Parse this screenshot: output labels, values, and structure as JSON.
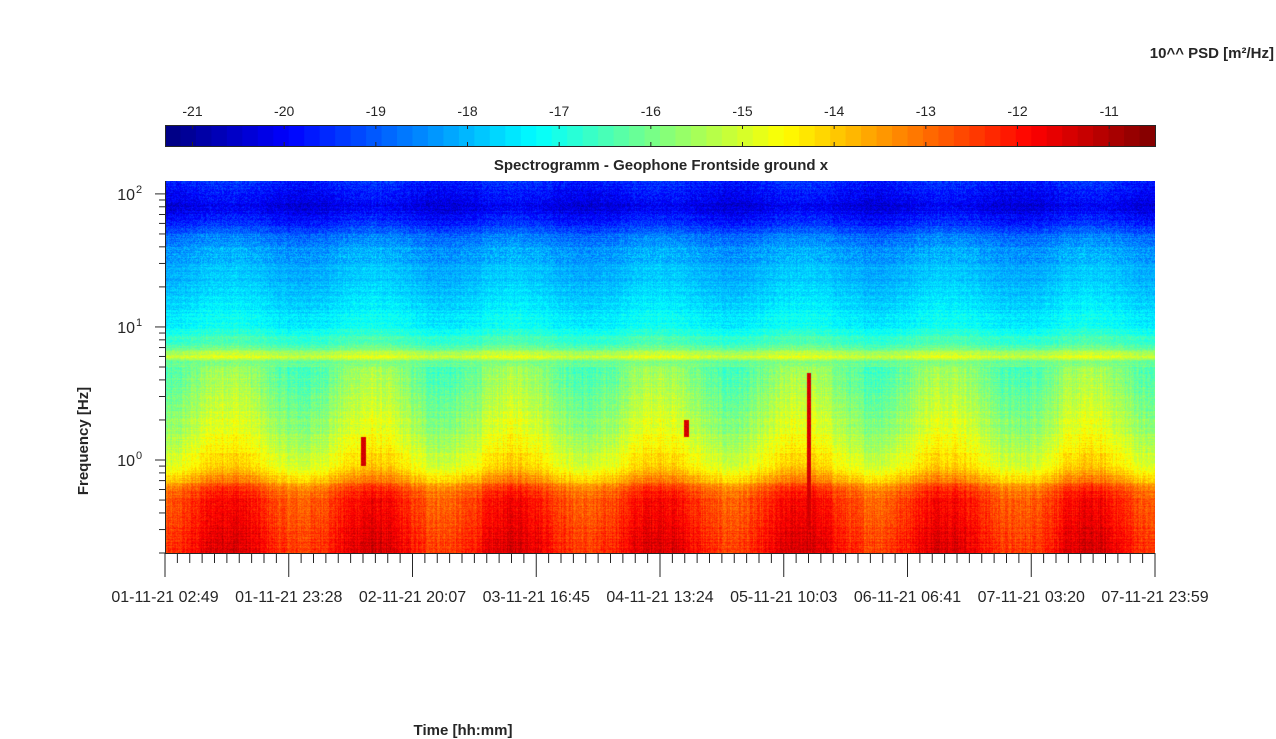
{
  "chart_data": {
    "type": "heatmap",
    "title": "Spectrogramm - Geophone Frontside ground x",
    "xlabel": "Time [hh:mm]",
    "ylabel": "Frequency [Hz]",
    "colorbar": {
      "label": "10^^ PSD [m²/Hz]",
      "colormap": "jet",
      "range": [
        -21.3,
        -10.5
      ],
      "ticks": [
        "-21",
        "-20",
        "-19",
        "-18",
        "-17",
        "-16",
        "-15",
        "-14",
        "-13",
        "-12",
        "-11"
      ],
      "tick_values": [
        -21,
        -20,
        -19,
        -18,
        -17,
        -16,
        -15,
        -14,
        -13,
        -12,
        -11
      ]
    },
    "x_axis": {
      "start": "01-11-21 02:49",
      "end": "07-11-21 23:59",
      "tick_labels": [
        "01-11-21  02:49",
        "01-11-21  23:28",
        "02-11-21  20:07",
        "03-11-21  16:45",
        "04-11-21  13:24",
        "05-11-21  10:03",
        "06-11-21  06:41",
        "07-11-21  03:20",
        "07-11-21  23:59"
      ]
    },
    "y_axis": {
      "scale": "log",
      "range": [
        0.2,
        125
      ],
      "tick_values": [
        1,
        10,
        100
      ],
      "tick_labels": [
        {
          "base": "10",
          "exp": "0"
        },
        {
          "base": "10",
          "exp": "1"
        },
        {
          "base": "10",
          "exp": "2"
        }
      ]
    },
    "psd_profile": {
      "description_units": "frequency [Hz] -> log10 PSD [m²/Hz]",
      "frequency": [
        0.2,
        0.3,
        0.45,
        0.6,
        0.7,
        0.85,
        1.0,
        1.5,
        2.5,
        4.0,
        5.5,
        6.0,
        7.0,
        10,
        15,
        22,
        30,
        40,
        50,
        60,
        80,
        100,
        125
      ],
      "log10_psd": [
        -11.9,
        -12.1,
        -12.3,
        -12.7,
        -13.6,
        -14.3,
        -14.6,
        -15.1,
        -15.6,
        -15.9,
        -16.0,
        -14.9,
        -16.2,
        -17.2,
        -17.6,
        -17.9,
        -18.1,
        -18.3,
        -18.8,
        -19.6,
        -20.2,
        -19.9,
        -19.5
      ]
    },
    "events": [
      {
        "time_fraction": 0.2,
        "f_low": 0.9,
        "f_high": 1.5
      },
      {
        "time_fraction": 0.526,
        "f_low": 1.5,
        "f_high": 2.0
      },
      {
        "time_fraction": 0.65,
        "f_low": 0.3,
        "f_high": 4.5
      }
    ],
    "grid": false
  }
}
